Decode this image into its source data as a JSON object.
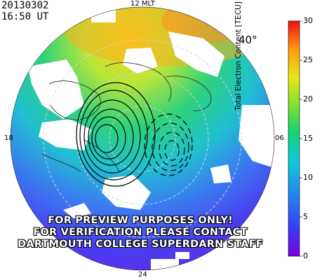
{
  "header": {
    "date": "20130302",
    "time": "16:50 UT"
  },
  "map": {
    "latitude_label": "40°",
    "mlt_labels": {
      "top": "12 MLT",
      "bottom": "24",
      "left": "18",
      "right": "06"
    }
  },
  "colorbar": {
    "title": "Total Electron Content [TECU]",
    "ticks": [
      "30",
      "25",
      "20",
      "15",
      "10",
      "5",
      "0"
    ],
    "min": 0,
    "max": 30
  },
  "watermark": {
    "lines": [
      "FOR PREVIEW PURPOSES ONLY!",
      "FOR VERIFICATION PLEASE CONTACT",
      "DARTMOUTH COLLEGE SUPERDARN STAFF"
    ]
  }
}
